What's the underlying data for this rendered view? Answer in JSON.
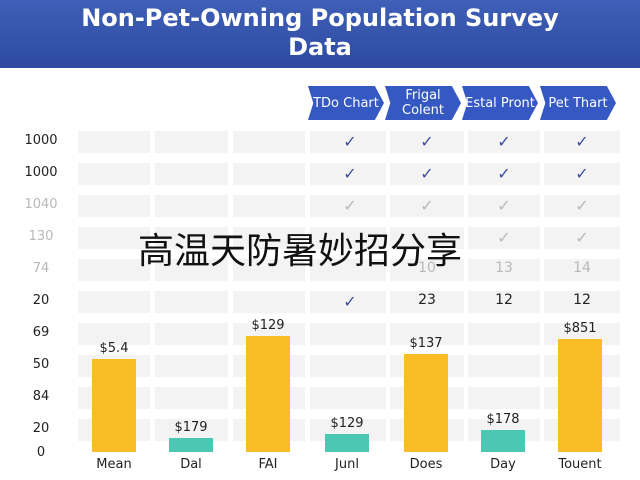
{
  "header": {
    "title": "Non-Pet-Owning Population Survey Data"
  },
  "columns": [
    "TDo Chart",
    "Frigal Colent",
    "Estal Pront",
    "Pet Thart"
  ],
  "rows": [
    {
      "label": "1000",
      "cells": [
        "✓",
        "✓",
        "✓",
        "✓"
      ]
    },
    {
      "label": "1000",
      "cells": [
        "✓",
        "✓",
        "✓",
        "✓"
      ]
    },
    {
      "label": "1040",
      "cells": [
        "✓",
        "✓",
        "✓",
        "✓"
      ]
    },
    {
      "label": "130",
      "cells": [
        null,
        null,
        "✓",
        "✓"
      ]
    },
    {
      "label": "74",
      "cells": [
        null,
        "10",
        "13",
        "14"
      ]
    },
    {
      "label": "20",
      "cells": [
        "✓",
        "23",
        "12",
        "12"
      ]
    }
  ],
  "axis_labels": [
    "69",
    "50",
    "84",
    "20",
    "0"
  ],
  "bars": [
    {
      "category": "Mean",
      "label": "$5.4"
    },
    {
      "category": "Dal",
      "label": "$179"
    },
    {
      "category": "FAI",
      "label": "$129"
    },
    {
      "category": "Junl",
      "label": "$129"
    },
    {
      "category": "Does",
      "label": "$137"
    },
    {
      "category": "Day",
      "label": "$178"
    },
    {
      "category": "Touent",
      "label": "$851"
    }
  ],
  "overlay": "高温天防暑妙招分享"
}
